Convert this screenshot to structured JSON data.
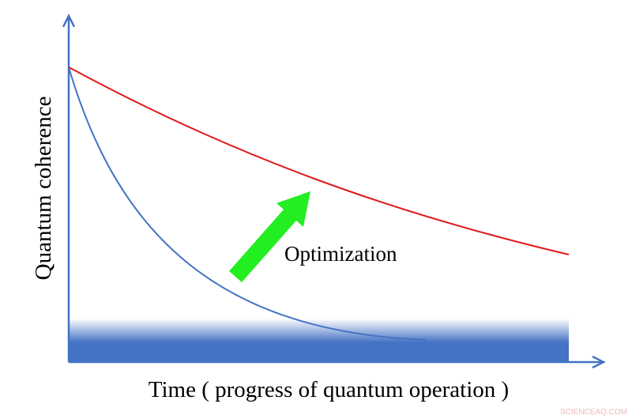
{
  "axes": {
    "y_label": "Quantum coherence",
    "x_label": "Time ( progress of quantum operation )"
  },
  "annotation": "Optimization",
  "watermark": "SCIENCEAQ.COM"
}
